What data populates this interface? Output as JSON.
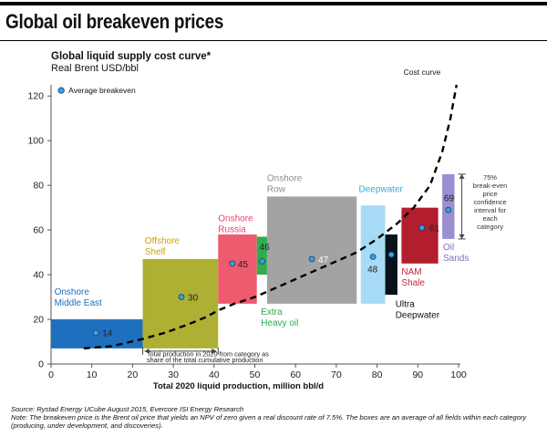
{
  "header": {
    "title": "Global oil breakeven prices"
  },
  "chart_data": {
    "type": "bar",
    "title": "Global liquid supply cost curve*",
    "subtitle": "Real Brent USD/bbl",
    "xlabel": "Total 2020 liquid production, million bbl/d",
    "ylabel": "",
    "xlim": [
      0,
      100
    ],
    "ylim": [
      0,
      125
    ],
    "x_ticks": [
      0,
      10,
      20,
      30,
      40,
      50,
      60,
      70,
      80,
      90,
      100
    ],
    "y_ticks": [
      0,
      20,
      40,
      60,
      80,
      100,
      120
    ],
    "legend": {
      "label": "Average breakeven",
      "placement": "top-left"
    },
    "categories": [
      {
        "name": "Onshore Middle East",
        "label_lines": [
          "Onshore",
          "Middle East"
        ],
        "x_start": 0,
        "x_end": 22.5,
        "low": 7,
        "high": 20,
        "avg": 14,
        "color": "#1f6fbf",
        "label_color": "#1f6fbf",
        "value_label_color": "#222222"
      },
      {
        "name": "Offshore Shelf",
        "label_lines": [
          "Offshore",
          "Shelf"
        ],
        "x_start": 22.5,
        "x_end": 41,
        "low": 7,
        "high": 47,
        "avg": 30,
        "color": "#aeb034",
        "label_color": "#c9a400",
        "value_label_color": "#222222"
      },
      {
        "name": "Onshore Russia",
        "label_lines": [
          "Onshore",
          "Russia"
        ],
        "x_start": 41,
        "x_end": 50.5,
        "low": 27,
        "high": 58,
        "avg": 45,
        "color": "#ef5b6e",
        "label_color": "#e8456b",
        "value_label_color": "#222222"
      },
      {
        "name": "Extra Heavy oil",
        "label_lines": [
          "Extra",
          "Heavy oil"
        ],
        "x_start": 50.5,
        "x_end": 53,
        "low": 40,
        "high": 57,
        "avg": 46,
        "color": "#2fae4e",
        "label_color": "#2fa84a",
        "value_label_color": "#222222"
      },
      {
        "name": "Onshore Row",
        "label_lines": [
          "Onshore",
          "Row"
        ],
        "x_start": 53,
        "x_end": 75,
        "low": 27,
        "high": 75,
        "avg": 47,
        "color": "#a3a3a3",
        "label_color": "#8c8c8c",
        "value_label_color": "#ffffff"
      },
      {
        "name": "Deepwater",
        "label_lines": [
          "Deepwater"
        ],
        "x_start": 76,
        "x_end": 82,
        "low": 27,
        "high": 71,
        "avg": 48,
        "color": "#a7dbf5",
        "label_color": "#3aa6dc",
        "value_label_color": "#222222"
      },
      {
        "name": "Ultra Deepwater",
        "label_lines": [
          "Ultra",
          "Deepwater"
        ],
        "x_start": 82,
        "x_end": 85,
        "low": 31,
        "high": 58,
        "avg": 49,
        "color": "#08121a",
        "label_color": "#111111",
        "value_label_color": "#222222"
      },
      {
        "name": "NAM Shale",
        "label_lines": [
          "NAM",
          "Shale"
        ],
        "x_start": 86,
        "x_end": 95,
        "low": 45,
        "high": 70,
        "avg": 61,
        "color": "#b31e2f",
        "label_color": "#c0283a",
        "value_label_color": "#222222"
      },
      {
        "name": "Oil Sands",
        "label_lines": [
          "Oil",
          "Sands"
        ],
        "x_start": 96,
        "x_end": 99,
        "low": 56,
        "high": 85,
        "avg": 69,
        "color": "#9b8fd0",
        "label_color": "#7c6fc0",
        "value_label_color": "#222222"
      }
    ],
    "cost_curve": {
      "label": "Cost curve",
      "points": [
        [
          8,
          7
        ],
        [
          15,
          8
        ],
        [
          22,
          11
        ],
        [
          28,
          14
        ],
        [
          34,
          18
        ],
        [
          38,
          21
        ],
        [
          41,
          24
        ],
        [
          45,
          27
        ],
        [
          50,
          30
        ],
        [
          55,
          34
        ],
        [
          60,
          38
        ],
        [
          65,
          42
        ],
        [
          70,
          46
        ],
        [
          75,
          50
        ],
        [
          80,
          56
        ],
        [
          85,
          63
        ],
        [
          89,
          70
        ],
        [
          93,
          80
        ],
        [
          96,
          95
        ],
        [
          98,
          110
        ],
        [
          99.5,
          125
        ]
      ]
    },
    "annotations": {
      "production_range_text": "Total production in 2020 from category as share of the total cumulative production",
      "confidence_interval_text": [
        "75%",
        "break-even",
        "price",
        "confidence",
        "interval for",
        "each",
        "category"
      ]
    }
  },
  "footnotes": {
    "source": "Source: Rystad Energy UCube August 2015, Evercore ISI Energy Research",
    "note": "Note: The breakeven price is the Brent oil price that yields an NPV of zero given a real discount rate of 7.5%. The boxes are an average of all fields within each category (producing, under development, and discoveries)."
  }
}
